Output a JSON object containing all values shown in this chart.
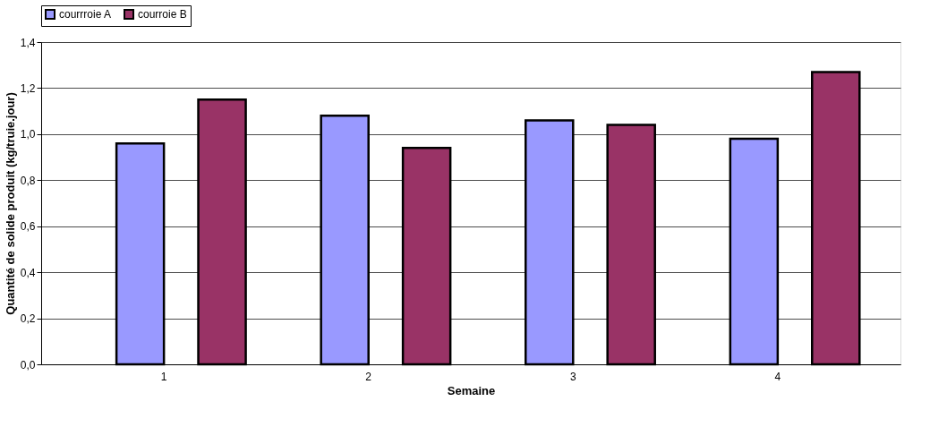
{
  "chart_data": {
    "type": "bar",
    "xlabel": "Semaine",
    "ylabel": "Quantité de solide produit (kg/truie.jour)",
    "categories": [
      "1",
      "2",
      "3",
      "4"
    ],
    "series": [
      {
        "name": "courrroie A",
        "color": "#9999ff",
        "values": [
          0.96,
          1.08,
          1.06,
          0.98
        ]
      },
      {
        "name": "courroie B",
        "color": "#993366",
        "values": [
          1.15,
          0.94,
          1.04,
          1.27
        ]
      }
    ],
    "ylim": [
      0,
      1.4
    ],
    "yticks": [
      {
        "value": 0,
        "label": "0,0"
      },
      {
        "value": 0.2,
        "label": "0,2"
      },
      {
        "value": 0.4,
        "label": "0,4"
      },
      {
        "value": 0.6,
        "label": "0,6"
      },
      {
        "value": 0.8,
        "label": "0,8"
      },
      {
        "value": 1.0,
        "label": "1,0"
      },
      {
        "value": 1.2,
        "label": "1,2"
      },
      {
        "value": 1.4,
        "label": "1,4"
      }
    ],
    "grid": "y",
    "legend": "top"
  }
}
